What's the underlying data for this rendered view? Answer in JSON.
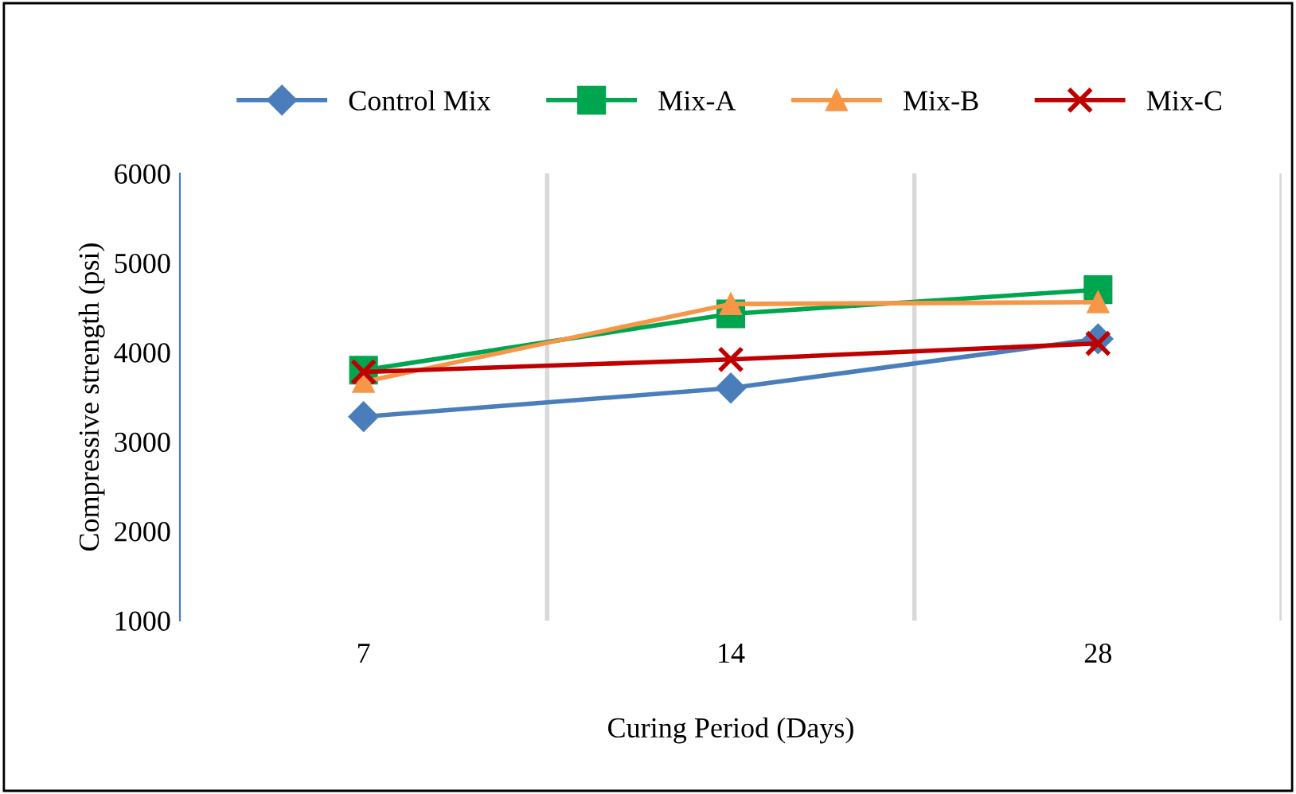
{
  "chart_data": {
    "type": "line",
    "xlabel": "Curing Period (Days)",
    "ylabel": "Compressive strength (psi)",
    "categories": [
      "7",
      "14",
      "28"
    ],
    "series": [
      {
        "name": "Control Mix",
        "color": "#4a7ebb",
        "values": [
          3280,
          3600,
          4150
        ],
        "marker": "diamond"
      },
      {
        "name": "Mix-A",
        "color": "#00a550",
        "values": [
          3800,
          4430,
          4700
        ],
        "marker": "square"
      },
      {
        "name": "Mix-B",
        "color": "#f79646",
        "values": [
          3670,
          4540,
          4560
        ],
        "marker": "triangle"
      },
      {
        "name": "Mix-C",
        "color": "#c00000",
        "values": [
          3780,
          3920,
          4100
        ],
        "marker": "cross"
      }
    ],
    "ylim": [
      1000,
      6000
    ],
    "yticks": [
      1000,
      2000,
      3000,
      4000,
      5000,
      6000
    ],
    "grid": "x",
    "legend": "top",
    "line_style": "solid"
  }
}
